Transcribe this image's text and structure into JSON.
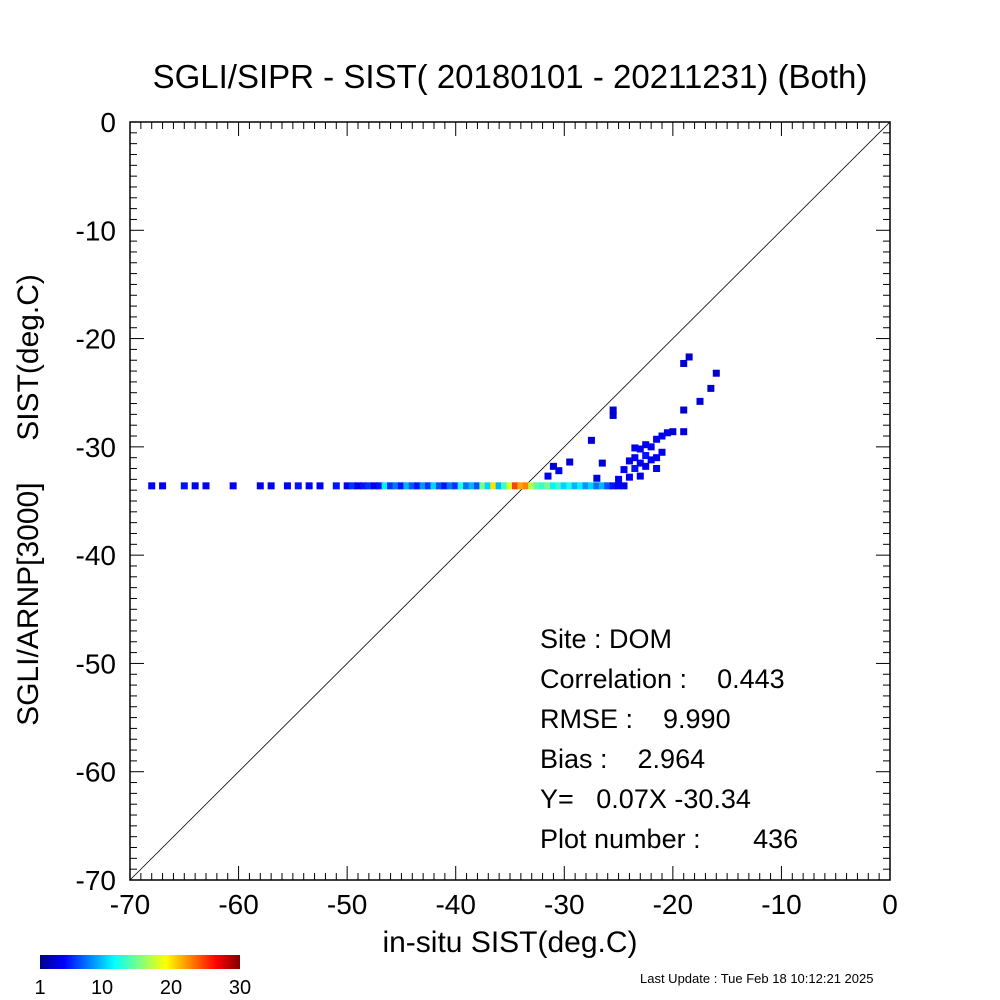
{
  "chart_data": {
    "type": "scatter",
    "subtype": "density-heatmap",
    "title": "SGLI/SIPR - SIST( 20180101 - 20211231) (Both)",
    "xlabel": "in-situ SIST(deg.C)",
    "ylabel": "SGLI/ARNP[3000]     SIST(deg.C)",
    "xlim": [
      -70,
      0
    ],
    "ylim": [
      -70,
      0
    ],
    "xticks": [
      "-70",
      "-60",
      "-50",
      "-40",
      "-30",
      "-20",
      "-10",
      "0"
    ],
    "yticks": [
      "0",
      "-10",
      "-20",
      "-30",
      "-40",
      "-50",
      "-60",
      "-70"
    ],
    "grid": false,
    "reference_line": "y = x",
    "colorbar": {
      "labels": [
        "1",
        "10",
        "20",
        "30"
      ],
      "range": [
        1,
        30
      ],
      "colormap": "jet"
    },
    "stats": [
      "Site : DOM",
      "Correlation :    0.443",
      "RMSE :    9.990",
      "Bias :    2.964",
      "Y=   0.07X -30.34",
      "Plot number :       436"
    ],
    "points": [
      {
        "x": -68.0,
        "y": -33.6,
        "count": 2
      },
      {
        "x": -67.0,
        "y": -33.6,
        "count": 2
      },
      {
        "x": -65.0,
        "y": -33.6,
        "count": 3
      },
      {
        "x": -64.0,
        "y": -33.6,
        "count": 2
      },
      {
        "x": -63.0,
        "y": -33.6,
        "count": 2
      },
      {
        "x": -60.5,
        "y": -33.6,
        "count": 2
      },
      {
        "x": -58.0,
        "y": -33.6,
        "count": 2
      },
      {
        "x": -57.0,
        "y": -33.6,
        "count": 2
      },
      {
        "x": -55.5,
        "y": -33.6,
        "count": 2
      },
      {
        "x": -54.5,
        "y": -33.6,
        "count": 3
      },
      {
        "x": -53.5,
        "y": -33.6,
        "count": 2
      },
      {
        "x": -52.5,
        "y": -33.6,
        "count": 2
      },
      {
        "x": -51.0,
        "y": -33.6,
        "count": 3
      },
      {
        "x": -50.0,
        "y": -33.6,
        "count": 2
      },
      {
        "x": -49.5,
        "y": -33.6,
        "count": 4
      },
      {
        "x": -49.0,
        "y": -33.6,
        "count": 2
      },
      {
        "x": -48.5,
        "y": -33.6,
        "count": 3
      },
      {
        "x": -48.0,
        "y": -33.6,
        "count": 4
      },
      {
        "x": -47.5,
        "y": -33.6,
        "count": 2
      },
      {
        "x": -47.0,
        "y": -33.6,
        "count": 3
      },
      {
        "x": -46.5,
        "y": -33.6,
        "count": 10
      },
      {
        "x": -46.0,
        "y": -33.6,
        "count": 4
      },
      {
        "x": -45.5,
        "y": -33.6,
        "count": 6
      },
      {
        "x": -45.0,
        "y": -33.6,
        "count": 3
      },
      {
        "x": -44.5,
        "y": -33.6,
        "count": 8
      },
      {
        "x": -44.0,
        "y": -33.6,
        "count": 5
      },
      {
        "x": -43.5,
        "y": -33.6,
        "count": 3
      },
      {
        "x": -43.0,
        "y": -33.6,
        "count": 7
      },
      {
        "x": -42.5,
        "y": -33.6,
        "count": 4
      },
      {
        "x": -42.0,
        "y": -33.6,
        "count": 9
      },
      {
        "x": -41.5,
        "y": -33.6,
        "count": 5
      },
      {
        "x": -41.0,
        "y": -33.6,
        "count": 3
      },
      {
        "x": -40.5,
        "y": -33.6,
        "count": 6
      },
      {
        "x": -40.0,
        "y": -33.6,
        "count": 4
      },
      {
        "x": -39.5,
        "y": -33.6,
        "count": 11
      },
      {
        "x": -39.0,
        "y": -33.6,
        "count": 6
      },
      {
        "x": -38.5,
        "y": -33.6,
        "count": 8
      },
      {
        "x": -38.0,
        "y": -33.6,
        "count": 5
      },
      {
        "x": -37.5,
        "y": -33.6,
        "count": 14
      },
      {
        "x": -37.0,
        "y": -33.6,
        "count": 9
      },
      {
        "x": -36.5,
        "y": -33.6,
        "count": 19
      },
      {
        "x": -36.0,
        "y": -33.6,
        "count": 8
      },
      {
        "x": -35.5,
        "y": -33.6,
        "count": 12
      },
      {
        "x": -35.0,
        "y": -33.6,
        "count": 17
      },
      {
        "x": -34.5,
        "y": -33.6,
        "count": 24
      },
      {
        "x": -34.0,
        "y": -33.6,
        "count": 21
      },
      {
        "x": -33.5,
        "y": -33.6,
        "count": 22
      },
      {
        "x": -33.0,
        "y": -33.6,
        "count": 16
      },
      {
        "x": -32.5,
        "y": -33.6,
        "count": 13
      },
      {
        "x": -32.0,
        "y": -33.6,
        "count": 12
      },
      {
        "x": -31.5,
        "y": -33.6,
        "count": 14
      },
      {
        "x": -31.0,
        "y": -33.6,
        "count": 10
      },
      {
        "x": -30.5,
        "y": -33.6,
        "count": 12
      },
      {
        "x": -30.0,
        "y": -33.6,
        "count": 9
      },
      {
        "x": -29.5,
        "y": -33.6,
        "count": 11
      },
      {
        "x": -29.0,
        "y": -33.6,
        "count": 8
      },
      {
        "x": -28.5,
        "y": -33.6,
        "count": 10
      },
      {
        "x": -28.0,
        "y": -33.6,
        "count": 7
      },
      {
        "x": -27.5,
        "y": -33.6,
        "count": 9
      },
      {
        "x": -27.0,
        "y": -33.6,
        "count": 6
      },
      {
        "x": -26.5,
        "y": -33.6,
        "count": 8
      },
      {
        "x": -26.0,
        "y": -33.6,
        "count": 5
      },
      {
        "x": -25.5,
        "y": -33.6,
        "count": 3
      },
      {
        "x": -25.0,
        "y": -33.6,
        "count": 2
      },
      {
        "x": -24.5,
        "y": -33.6,
        "count": 2
      },
      {
        "x": -31.5,
        "y": -32.7,
        "count": 2
      },
      {
        "x": -31.0,
        "y": -31.8,
        "count": 1
      },
      {
        "x": -30.5,
        "y": -32.2,
        "count": 2
      },
      {
        "x": -29.5,
        "y": -31.4,
        "count": 1
      },
      {
        "x": -27.5,
        "y": -29.4,
        "count": 1
      },
      {
        "x": -27.0,
        "y": -32.9,
        "count": 1
      },
      {
        "x": -26.5,
        "y": -31.5,
        "count": 1
      },
      {
        "x": -25.5,
        "y": -26.6,
        "count": 1
      },
      {
        "x": -25.5,
        "y": -27.1,
        "count": 1
      },
      {
        "x": -25.0,
        "y": -33.0,
        "count": 2
      },
      {
        "x": -24.5,
        "y": -32.1,
        "count": 2
      },
      {
        "x": -24.0,
        "y": -32.8,
        "count": 2
      },
      {
        "x": -24.0,
        "y": -31.3,
        "count": 2
      },
      {
        "x": -23.5,
        "y": -32.0,
        "count": 3
      },
      {
        "x": -23.5,
        "y": -31.0,
        "count": 2
      },
      {
        "x": -23.5,
        "y": -30.1,
        "count": 2
      },
      {
        "x": -23.0,
        "y": -32.7,
        "count": 2
      },
      {
        "x": -23.0,
        "y": -31.5,
        "count": 2
      },
      {
        "x": -23.0,
        "y": -30.2,
        "count": 2
      },
      {
        "x": -22.5,
        "y": -31.8,
        "count": 2
      },
      {
        "x": -22.5,
        "y": -30.8,
        "count": 3
      },
      {
        "x": -22.5,
        "y": -29.8,
        "count": 2
      },
      {
        "x": -22.0,
        "y": -31.2,
        "count": 2
      },
      {
        "x": -22.0,
        "y": -30.0,
        "count": 2
      },
      {
        "x": -21.5,
        "y": -32.0,
        "count": 2
      },
      {
        "x": -21.5,
        "y": -31.0,
        "count": 2
      },
      {
        "x": -21.5,
        "y": -29.3,
        "count": 2
      },
      {
        "x": -21.0,
        "y": -30.5,
        "count": 2
      },
      {
        "x": -21.0,
        "y": -29.0,
        "count": 2
      },
      {
        "x": -20.5,
        "y": -28.7,
        "count": 2
      },
      {
        "x": -20.0,
        "y": -28.6,
        "count": 1
      },
      {
        "x": -19.0,
        "y": -26.6,
        "count": 1
      },
      {
        "x": -19.0,
        "y": -28.6,
        "count": 1
      },
      {
        "x": -18.5,
        "y": -21.7,
        "count": 1
      },
      {
        "x": -19.0,
        "y": -22.3,
        "count": 1
      },
      {
        "x": -17.5,
        "y": -25.8,
        "count": 1
      },
      {
        "x": -16.5,
        "y": -24.6,
        "count": 1
      },
      {
        "x": -16.0,
        "y": -23.2,
        "count": 1
      }
    ]
  },
  "footer": {
    "last_update": "Last Update : Tue Feb 18 10:12:21 2025"
  }
}
